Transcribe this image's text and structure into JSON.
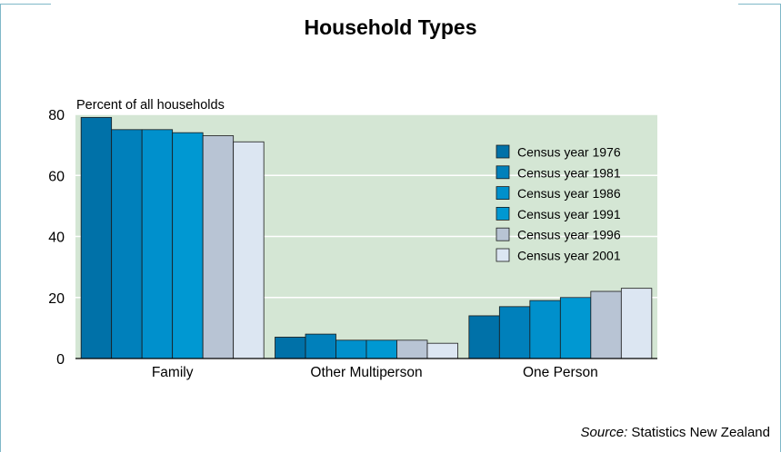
{
  "chart_data": {
    "type": "bar",
    "title": "Household Types",
    "ylabel": "Percent of all households",
    "xlabel": "",
    "ylim": [
      0,
      80
    ],
    "yticks": [
      0,
      20,
      40,
      60,
      80
    ],
    "grid": true,
    "legend_position": "top-right",
    "plot_background": "#d4e6d4",
    "categories": [
      "Family",
      "Other Multiperson",
      "One Person"
    ],
    "series": [
      {
        "name": "Census year 1976",
        "color": "#0071a8",
        "values": [
          79,
          7,
          14
        ]
      },
      {
        "name": "Census year 1981",
        "color": "#0080bb",
        "values": [
          75,
          8,
          17
        ]
      },
      {
        "name": "Census year 1986",
        "color": "#0090cc",
        "values": [
          75,
          6,
          19
        ]
      },
      {
        "name": "Census year 1991",
        "color": "#0098d2",
        "values": [
          74,
          6,
          20
        ]
      },
      {
        "name": "Census year 1996",
        "color": "#b8c4d4",
        "values": [
          73,
          6,
          22
        ]
      },
      {
        "name": "Census year 2001",
        "color": "#dce6f2",
        "values": [
          71,
          5,
          23
        ]
      }
    ]
  },
  "source": {
    "label": "Source:",
    "text": "Statistics New Zealand"
  }
}
